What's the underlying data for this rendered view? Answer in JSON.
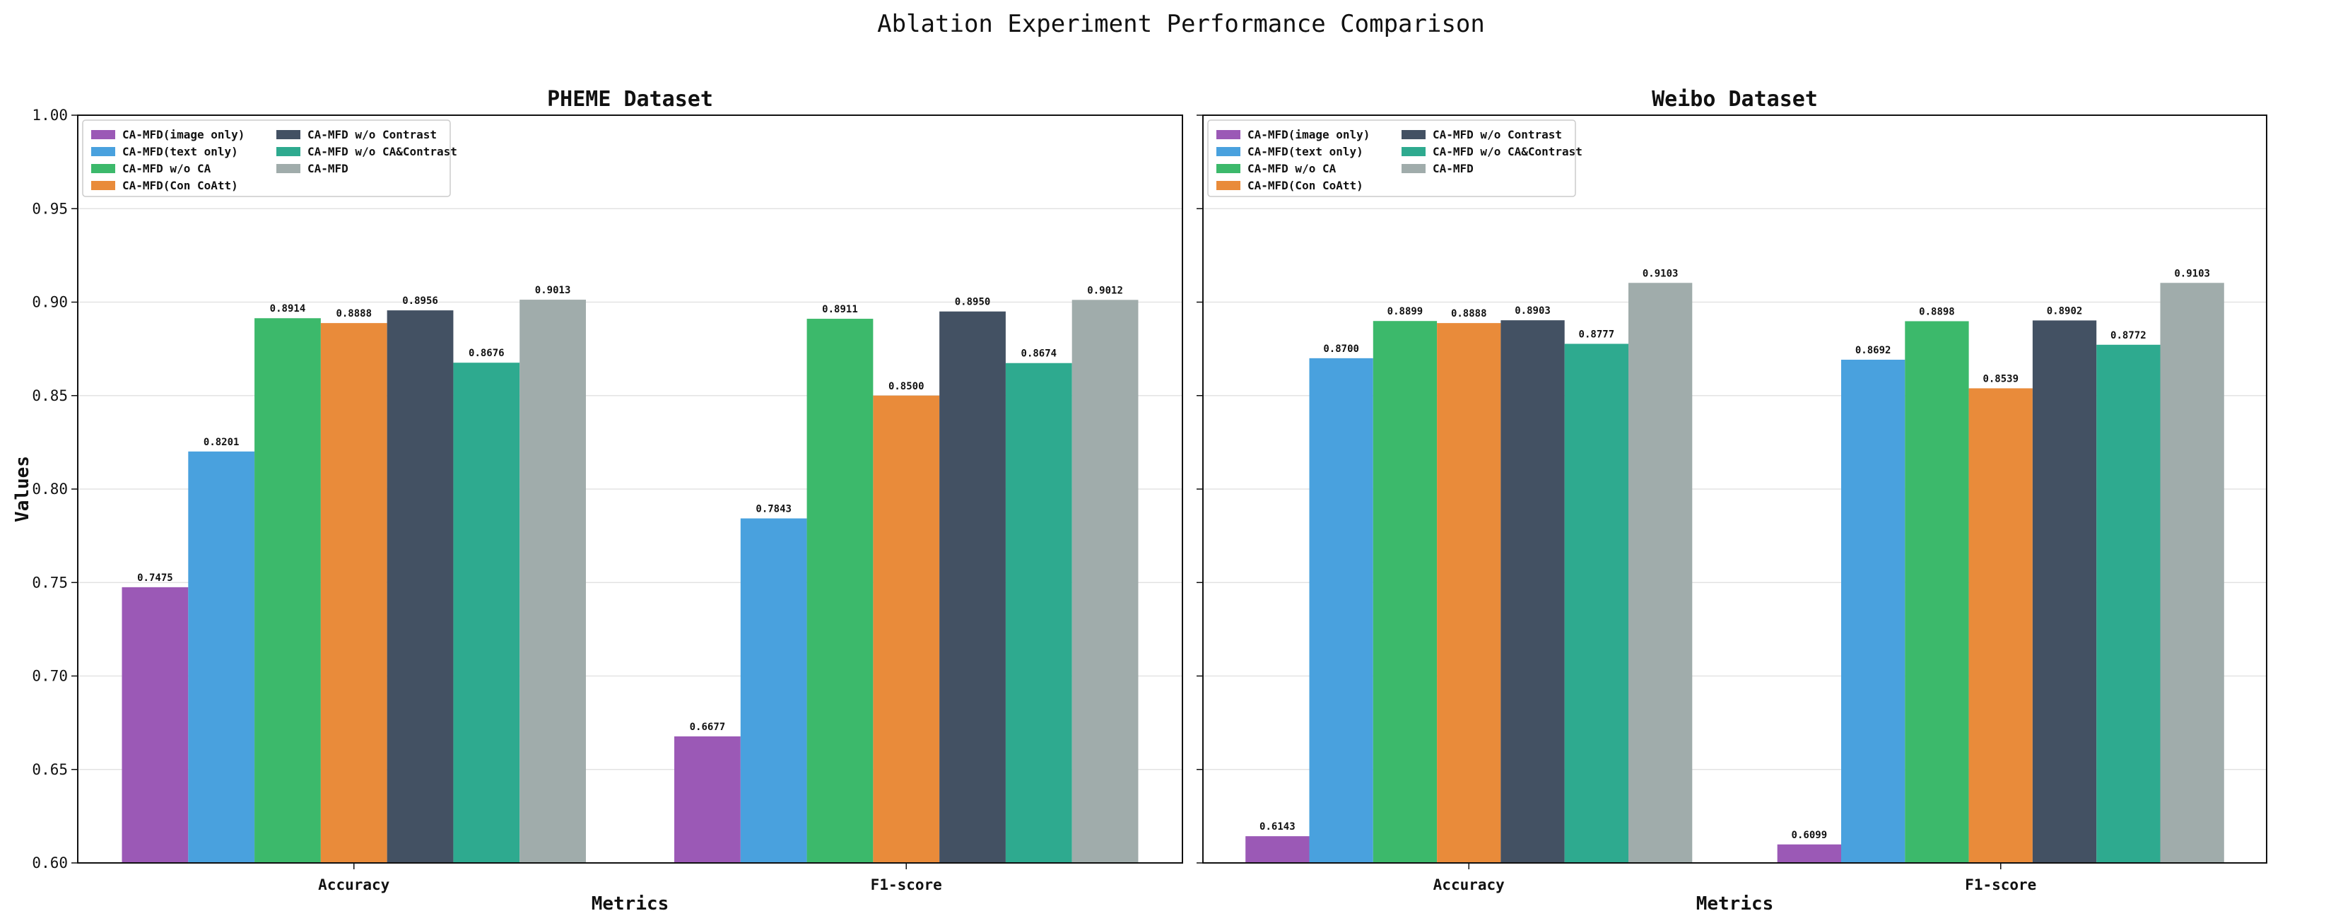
{
  "title": "Ablation Experiment Performance Comparison",
  "colors": {
    "CA-MFD(image only)": "#9b59b6",
    "CA-MFD(text only)": "#49a1de",
    "CA-MFD w/o CA": "#3cb96b",
    "CA-MFD(Con CoAtt)": "#e98b3a",
    "CA-MFD w/o Contrast": "#435163",
    "CA-MFD w/o CA&Contrast": "#2eaa8f",
    "CA-MFD": "#a0acab"
  },
  "chart_data": [
    {
      "type": "bar",
      "title": "PHEME Dataset",
      "xlabel": "Metrics",
      "ylabel": "Values",
      "ylim": [
        0.6,
        1.0
      ],
      "yticks": [
        "0.60",
        "0.65",
        "0.70",
        "0.75",
        "0.80",
        "0.85",
        "0.90",
        "0.95",
        "1.00"
      ],
      "grid": "y",
      "legend_position": "top-left",
      "categories": [
        "Accuracy",
        "F1-score"
      ],
      "series": [
        {
          "name": "CA-MFD(image only)",
          "values": [
            0.7475,
            0.6677
          ],
          "labels": [
            "0.7475",
            "0.6677"
          ]
        },
        {
          "name": "CA-MFD(text only)",
          "values": [
            0.8201,
            0.7843
          ],
          "labels": [
            "0.8201",
            "0.7843"
          ]
        },
        {
          "name": "CA-MFD w/o CA",
          "values": [
            0.8914,
            0.8911
          ],
          "labels": [
            "0.8914",
            "0.8911"
          ]
        },
        {
          "name": "CA-MFD(Con CoAtt)",
          "values": [
            0.8888,
            0.85
          ],
          "labels": [
            "0.8888",
            "0.8500"
          ]
        },
        {
          "name": "CA-MFD w/o Contrast",
          "values": [
            0.8956,
            0.895
          ],
          "labels": [
            "0.8956",
            "0.8950"
          ]
        },
        {
          "name": "CA-MFD w/o CA&Contrast",
          "values": [
            0.8676,
            0.8674
          ],
          "labels": [
            "0.8676",
            "0.8674"
          ]
        },
        {
          "name": "CA-MFD",
          "values": [
            0.9013,
            0.9012
          ],
          "labels": [
            "0.9013",
            "0.9012"
          ]
        }
      ]
    },
    {
      "type": "bar",
      "title": "Weibo Dataset",
      "xlabel": "Metrics",
      "ylabel": "",
      "ylim": [
        0.6,
        1.0
      ],
      "yticks": [],
      "grid": "y",
      "legend_position": "top-left",
      "categories": [
        "Accuracy",
        "F1-score"
      ],
      "series": [
        {
          "name": "CA-MFD(image only)",
          "values": [
            0.6143,
            0.6099
          ],
          "labels": [
            "0.6143",
            "0.6099"
          ]
        },
        {
          "name": "CA-MFD(text only)",
          "values": [
            0.87,
            0.8692
          ],
          "labels": [
            "0.8700",
            "0.8692"
          ]
        },
        {
          "name": "CA-MFD w/o CA",
          "values": [
            0.8899,
            0.8898
          ],
          "labels": [
            "0.8899",
            "0.8898"
          ]
        },
        {
          "name": "CA-MFD(Con CoAtt)",
          "values": [
            0.8888,
            0.8539
          ],
          "labels": [
            "0.8888",
            "0.8539"
          ]
        },
        {
          "name": "CA-MFD w/o Contrast",
          "values": [
            0.8903,
            0.8902
          ],
          "labels": [
            "0.8903",
            "0.8902"
          ]
        },
        {
          "name": "CA-MFD w/o CA&Contrast",
          "values": [
            0.8777,
            0.8772
          ],
          "labels": [
            "0.8777",
            "0.8772"
          ]
        },
        {
          "name": "CA-MFD",
          "values": [
            0.9103,
            0.9103
          ],
          "labels": [
            "0.9103",
            "0.9103"
          ]
        }
      ]
    }
  ]
}
